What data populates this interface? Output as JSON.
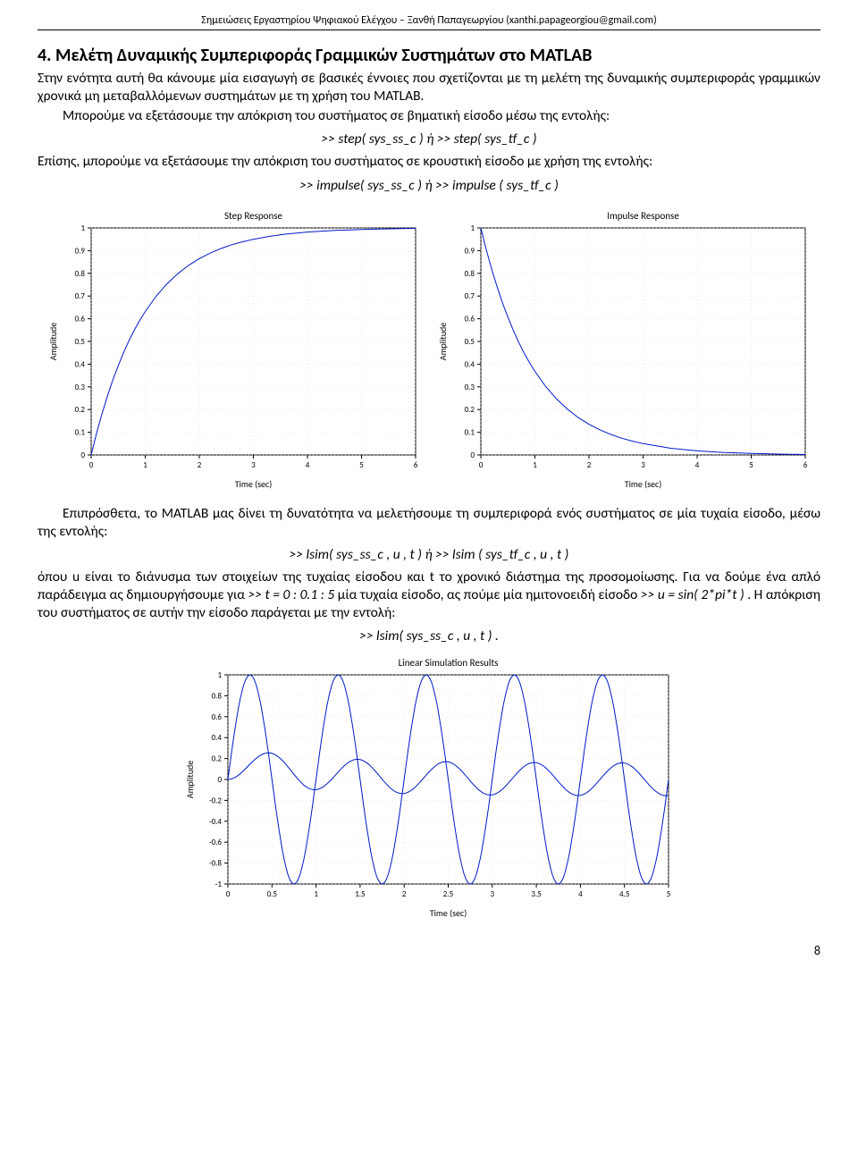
{
  "header": {
    "text": "Σημειώσεις Εργαστηρίου Ψηφιακού Ελέγχου – Ξανθή Παπαγεωργίου (xanthi.papageorgiou@gmail.com)"
  },
  "section": {
    "title": "4. Μελέτη Δυναμικής Συμπεριφοράς Γραμμικών Συστημάτων στο MATLAB",
    "para1": "Στην ενότητα αυτή θα κάνουμε μία εισαγωγή σε βασικές έννοιες που σχετίζονται με τη μελέτη της δυναμικής συμπεριφοράς γραμμικών χρονικά μη μεταβαλλόμενων συστημάτων με τη χρήση του MATLAB.",
    "para2": "Μπορούμε να εξετάσουμε την απόκριση του συστήματος σε βηματική είσοδο μέσω της εντολής:",
    "cmd_step": ">> step( sys_ss_c )   ή   >> step( sys_tf_c )",
    "para3": "Επίσης, μπορούμε να εξετάσουμε την απόκριση του συστήματος σε κρουστική είσοδο με χρήση της εντολής:",
    "cmd_impulse": ">> impulse( sys_ss_c )   ή   >> impulse ( sys_tf_c )",
    "para4_pre": "Επιπρόσθετα, το MATLAB μας δίνει τη δυνατότητα να μελετήσουμε τη συμπεριφορά ενός συστήματος σε μία τυχαία είσοδο, μέσω της εντολής:",
    "cmd_lsim": ">> lsim( sys_ss_c , u , t )   ή   >> lsim ( sys_tf_c , u , t )",
    "para5_a": "όπου u είναι το διάνυσμα των στοιχείων της τυχαίας είσοδου και t το χρονικό διάστημα της προσομοίωσης. Για να δούμε ένα απλό παράδειγμα ας δημιουργήσουμε για  ",
    "cmd_t": ">> t = 0 : 0.1 : 5",
    "para5_b": "  μία τυχαία είσοδο, ας πούμε μία ημιτονοειδή είσοδο ",
    "cmd_u": ">> u = sin( 2*pi*t )",
    "para5_c": " . Η απόκριση του συστήματος σε αυτήν την είσοδο παράγεται με την εντολή:",
    "cmd_lsim2": ">> lsim( sys_ss_c , u , t ) ."
  },
  "step_chart": {
    "type": "line",
    "title": "Step Response",
    "xlabel": "Time (sec)",
    "ylabel": "Amplitude",
    "xlim": [
      0,
      6
    ],
    "ylim": [
      0,
      1
    ],
    "xticks": [
      0,
      1,
      2,
      3,
      4,
      5,
      6
    ],
    "yticks": [
      0,
      0.1,
      0.2,
      0.3,
      0.4,
      0.5,
      0.6,
      0.7,
      0.8,
      0.9,
      1
    ],
    "line_color": "#0018c8",
    "background_color": "#ffffff",
    "grid_color": "#d8d8d8",
    "data": [
      [
        0,
        0
      ],
      [
        0.1,
        0.095
      ],
      [
        0.2,
        0.181
      ],
      [
        0.3,
        0.259
      ],
      [
        0.4,
        0.33
      ],
      [
        0.5,
        0.393
      ],
      [
        0.6,
        0.451
      ],
      [
        0.7,
        0.503
      ],
      [
        0.8,
        0.551
      ],
      [
        0.9,
        0.593
      ],
      [
        1.0,
        0.632
      ],
      [
        1.2,
        0.699
      ],
      [
        1.4,
        0.753
      ],
      [
        1.6,
        0.798
      ],
      [
        1.8,
        0.835
      ],
      [
        2.0,
        0.865
      ],
      [
        2.2,
        0.889
      ],
      [
        2.4,
        0.909
      ],
      [
        2.6,
        0.926
      ],
      [
        2.8,
        0.939
      ],
      [
        3.0,
        0.95
      ],
      [
        3.3,
        0.963
      ],
      [
        3.6,
        0.973
      ],
      [
        4.0,
        0.982
      ],
      [
        4.5,
        0.989
      ],
      [
        5.0,
        0.993
      ],
      [
        5.5,
        0.996
      ],
      [
        6.0,
        0.998
      ]
    ]
  },
  "impulse_chart": {
    "type": "line",
    "title": "Impulse Response",
    "xlabel": "Time (sec)",
    "ylabel": "Amplitude",
    "xlim": [
      0,
      6
    ],
    "ylim": [
      0,
      1
    ],
    "xticks": [
      0,
      1,
      2,
      3,
      4,
      5,
      6
    ],
    "yticks": [
      0,
      0.1,
      0.2,
      0.3,
      0.4,
      0.5,
      0.6,
      0.7,
      0.8,
      0.9,
      1
    ],
    "line_color": "#0018c8",
    "background_color": "#ffffff",
    "grid_color": "#d8d8d8",
    "data": [
      [
        0,
        1.0
      ],
      [
        0.1,
        0.905
      ],
      [
        0.2,
        0.819
      ],
      [
        0.3,
        0.741
      ],
      [
        0.4,
        0.67
      ],
      [
        0.5,
        0.607
      ],
      [
        0.6,
        0.549
      ],
      [
        0.7,
        0.497
      ],
      [
        0.8,
        0.449
      ],
      [
        0.9,
        0.407
      ],
      [
        1.0,
        0.368
      ],
      [
        1.2,
        0.301
      ],
      [
        1.4,
        0.247
      ],
      [
        1.6,
        0.202
      ],
      [
        1.8,
        0.165
      ],
      [
        2.0,
        0.135
      ],
      [
        2.2,
        0.111
      ],
      [
        2.4,
        0.091
      ],
      [
        2.6,
        0.074
      ],
      [
        2.8,
        0.061
      ],
      [
        3.0,
        0.05
      ],
      [
        3.5,
        0.03
      ],
      [
        4.0,
        0.018
      ],
      [
        4.5,
        0.011
      ],
      [
        5.0,
        0.007
      ],
      [
        5.5,
        0.004
      ],
      [
        6.0,
        0.002
      ]
    ]
  },
  "lsim_chart": {
    "type": "line",
    "title": "Linear Simulation Results",
    "xlabel": "Time (sec)",
    "ylabel": "Amplitude",
    "xlim": [
      0,
      5
    ],
    "ylim": [
      -1,
      1
    ],
    "xticks": [
      0,
      0.5,
      1,
      1.5,
      2,
      2.5,
      3,
      3.5,
      4,
      4.5,
      5
    ],
    "yticks": [
      -1,
      -0.8,
      -0.6,
      -0.4,
      -0.2,
      0,
      0.2,
      0.4,
      0.6,
      0.8,
      1
    ],
    "line_color": "#0018c8",
    "background_color": "#ffffff",
    "grid_color": "#d8d8d8",
    "series": {
      "input": [
        [
          0,
          0
        ],
        [
          0.05,
          0.309
        ],
        [
          0.1,
          0.588
        ],
        [
          0.15,
          0.809
        ],
        [
          0.2,
          0.951
        ],
        [
          0.25,
          1.0
        ],
        [
          0.3,
          0.951
        ],
        [
          0.35,
          0.809
        ],
        [
          0.4,
          0.588
        ],
        [
          0.45,
          0.309
        ],
        [
          0.5,
          0.0
        ],
        [
          0.55,
          -0.309
        ],
        [
          0.6,
          -0.588
        ],
        [
          0.65,
          -0.809
        ],
        [
          0.7,
          -0.951
        ],
        [
          0.75,
          -1.0
        ],
        [
          0.8,
          -0.951
        ],
        [
          0.85,
          -0.809
        ],
        [
          0.9,
          -0.588
        ],
        [
          0.95,
          -0.309
        ],
        [
          1.0,
          0.0
        ]
      ],
      "output_steady_amp": 0.157,
      "output_phase_deg": -81
    }
  },
  "page_number": "8"
}
